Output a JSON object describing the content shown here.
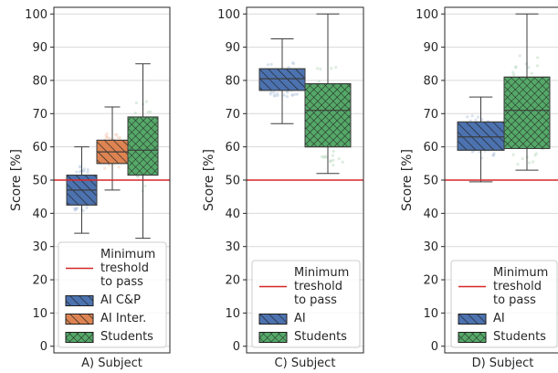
{
  "chart_data": [
    {
      "type": "box",
      "xlabel": "A) Subject",
      "ylabel": "Score [%]",
      "ylim": [
        -2,
        102
      ],
      "yticks": [
        0,
        10,
        20,
        30,
        40,
        50,
        60,
        70,
        80,
        90,
        100
      ],
      "grid": true,
      "threshold": 50,
      "legend": {
        "placement": "lower-right",
        "entries": [
          {
            "label": "Minimum\ntreshold\nto pass",
            "kind": "line",
            "color": "#d62728"
          },
          {
            "label": "AI C&P",
            "kind": "patch",
            "hatch": "diagonal",
            "color": "#4c72b0"
          },
          {
            "label": "AI Inter.",
            "kind": "patch",
            "hatch": "diagonal",
            "color": "#dd8452"
          },
          {
            "label": "Students",
            "kind": "patch",
            "hatch": "cross",
            "color": "#55a868"
          }
        ]
      },
      "series": [
        {
          "name": "AI C&P",
          "color": "#4c72b0",
          "hatch": "diagonal",
          "whisker_low": 34,
          "q1": 42.5,
          "median": 47,
          "q3": 51.5,
          "whisker_high": 60
        },
        {
          "name": "AI Inter.",
          "color": "#dd8452",
          "hatch": "diagonal",
          "whisker_low": 47,
          "q1": 55,
          "median": 58.5,
          "q3": 62,
          "whisker_high": 72
        },
        {
          "name": "Students",
          "color": "#55a868",
          "hatch": "cross",
          "whisker_low": 32.5,
          "q1": 51.5,
          "median": 59,
          "q3": 69,
          "whisker_high": 85
        }
      ]
    },
    {
      "type": "box",
      "xlabel": "C) Subject",
      "ylabel": "Score [%]",
      "ylim": [
        -2,
        102
      ],
      "yticks": [
        0,
        10,
        20,
        30,
        40,
        50,
        60,
        70,
        80,
        90,
        100
      ],
      "grid": true,
      "threshold": 50,
      "legend": {
        "placement": "lower-right",
        "entries": [
          {
            "label": "Minimum\ntreshold\nto pass",
            "kind": "line",
            "color": "#d62728"
          },
          {
            "label": "AI",
            "kind": "patch",
            "hatch": "diagonal",
            "color": "#4c72b0"
          },
          {
            "label": "Students",
            "kind": "patch",
            "hatch": "cross",
            "color": "#55a868"
          }
        ]
      },
      "series": [
        {
          "name": "AI",
          "color": "#4c72b0",
          "hatch": "diagonal",
          "whisker_low": 67,
          "q1": 77,
          "median": 80.5,
          "q3": 83.5,
          "whisker_high": 92.5
        },
        {
          "name": "Students",
          "color": "#55a868",
          "hatch": "cross",
          "whisker_low": 52,
          "q1": 60,
          "median": 71,
          "q3": 79,
          "whisker_high": 100
        }
      ]
    },
    {
      "type": "box",
      "xlabel": "D) Subject",
      "ylabel": "Score [%]",
      "ylim": [
        -2,
        102
      ],
      "yticks": [
        0,
        10,
        20,
        30,
        40,
        50,
        60,
        70,
        80,
        90,
        100
      ],
      "grid": true,
      "threshold": 50,
      "legend": {
        "placement": "lower-right",
        "entries": [
          {
            "label": "Minimum\ntreshold\nto pass",
            "kind": "line",
            "color": "#d62728"
          },
          {
            "label": "AI",
            "kind": "patch",
            "hatch": "diagonal",
            "color": "#4c72b0"
          },
          {
            "label": "Students",
            "kind": "patch",
            "hatch": "cross",
            "color": "#55a868"
          }
        ]
      },
      "series": [
        {
          "name": "AI",
          "color": "#4c72b0",
          "hatch": "diagonal",
          "whisker_low": 49.5,
          "q1": 59,
          "median": 63,
          "q3": 67.5,
          "whisker_high": 75
        },
        {
          "name": "Students",
          "color": "#55a868",
          "hatch": "cross",
          "whisker_low": 53,
          "q1": 59.5,
          "median": 71,
          "q3": 81,
          "whisker_high": 100
        }
      ]
    }
  ]
}
